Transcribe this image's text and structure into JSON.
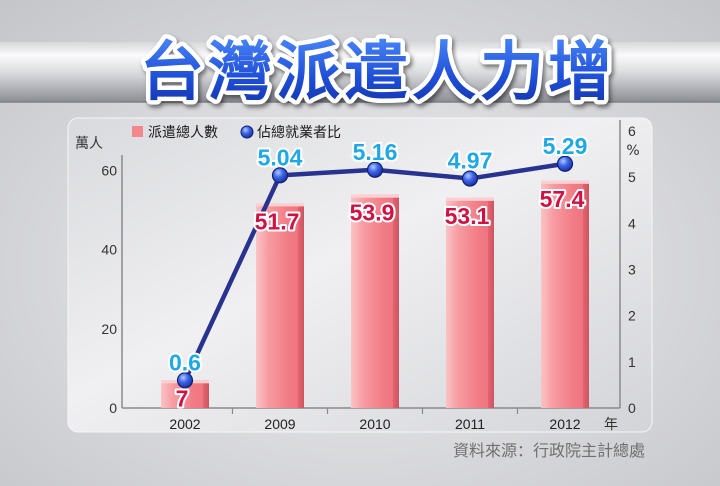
{
  "title": "台灣派遣人力增",
  "source": "資料來源：行政院主計總處",
  "colors": {
    "bar": "#f4868d",
    "bar_label": "#cf1244",
    "line": "#27338f",
    "point": "#2348d0",
    "line_label": "#1ea9e6"
  },
  "chart_data": {
    "type": "bar",
    "categories": [
      "2002",
      "2009",
      "2010",
      "2011",
      "2012"
    ],
    "xlabel": "年",
    "ylabel": "萬人",
    "ylabel_right": "%",
    "ylim": [
      0,
      70
    ],
    "ylim_right": [
      0,
      6
    ],
    "yticks": [
      0,
      20,
      40,
      60
    ],
    "yticks_right": [
      0,
      1,
      2,
      3,
      4,
      5,
      6
    ],
    "grid": false,
    "legend": "top-left",
    "series": [
      {
        "name": "派遣總人數",
        "type": "bar",
        "y_axis": "left",
        "values": [
          7,
          51.7,
          53.9,
          53.1,
          57.4
        ]
      },
      {
        "name": "佔總就業者比",
        "type": "line",
        "y_axis": "right",
        "values": [
          0.6,
          5.04,
          5.16,
          4.97,
          5.29
        ]
      }
    ]
  }
}
